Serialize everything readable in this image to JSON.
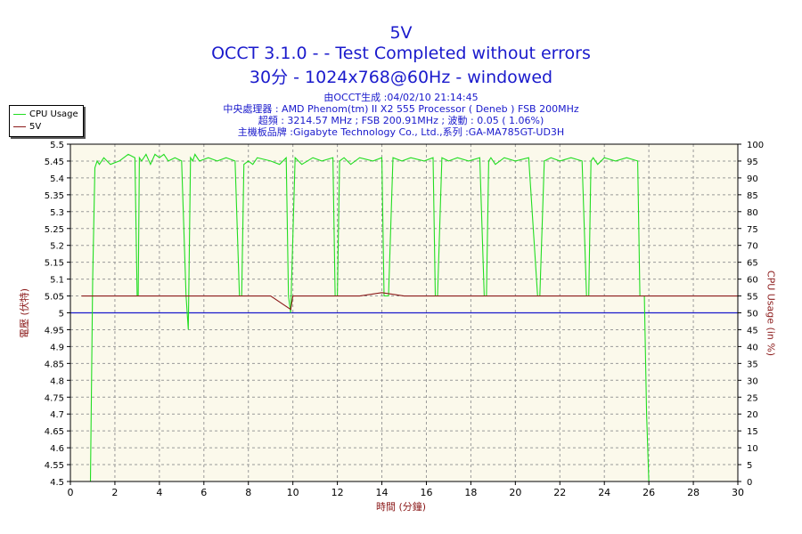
{
  "header": {
    "title": "5V",
    "subtitle": "OCCT 3.1.0 -  - Test Completed without errors",
    "subtitle2": "30分 - 1024x768@60Hz - windowed",
    "info": [
      "由OCCT生成 :04/02/10 21:14:45",
      "中央處理器 : AMD Phenom(tm) II X2 555 Processor ( Deneb ) FSB 200MHz",
      "超頻 : 3214.57 MHz ; FSB 200.91MHz ; 波動 : 0.05 ( 1.06%)",
      "主機板品牌 :Gigabyte Technology Co., Ltd.,系列 :GA-MA785GT-UD3H"
    ]
  },
  "legend": {
    "cpu_label": "CPU Usage",
    "v5_label": "5V"
  },
  "colors": {
    "cpu": "#22dd22",
    "v5": "#8b1a1a",
    "ref": "#1a1acc",
    "plot_bg": "#fbf9eb",
    "title": "#1a1acc",
    "axis_label": "#8b1a1a"
  },
  "chart_data": {
    "type": "line",
    "title": "5V",
    "xlabel": "時間 (分鐘)",
    "ylabel": "電壓 (伏特)",
    "y2label": "CPU Usage (in %)",
    "xlim": [
      0,
      30
    ],
    "ylim": [
      4.5,
      5.5
    ],
    "y2lim": [
      0,
      100
    ],
    "grid": true,
    "legend_position": "top-left",
    "x_ticks": [
      0,
      2,
      4,
      6,
      8,
      10,
      12,
      14,
      16,
      18,
      20,
      22,
      24,
      26,
      28,
      30
    ],
    "y_ticks": [
      4.5,
      4.55,
      4.6,
      4.65,
      4.7,
      4.75,
      4.8,
      4.85,
      4.9,
      4.95,
      5,
      5.05,
      5.1,
      5.15,
      5.2,
      5.25,
      5.3,
      5.35,
      5.4,
      5.45,
      5.5
    ],
    "y_tick_labels": [
      "4.5",
      "4.55",
      "4.6",
      "4.65",
      "4.7",
      "4.75",
      "4.8",
      "4.85",
      "4.9",
      "4.95",
      "5",
      "5.05",
      "5.1",
      "5.15",
      "5.2",
      "5.25",
      "5.3",
      "5.35",
      "5.4",
      "5.45",
      "5.5"
    ],
    "y2_ticks": [
      0,
      5,
      10,
      15,
      20,
      25,
      30,
      35,
      40,
      45,
      50,
      55,
      60,
      65,
      70,
      75,
      80,
      85,
      90,
      95,
      100
    ],
    "reference_line": {
      "y": 5.0
    },
    "series": [
      {
        "name": "CPU Usage",
        "axis": "right",
        "x": [
          0.9,
          1.0,
          1.1,
          1.2,
          1.3,
          1.5,
          1.8,
          2.2,
          2.6,
          2.9,
          3.0,
          3.05,
          3.1,
          3.2,
          3.4,
          3.6,
          3.8,
          4.0,
          4.2,
          4.4,
          4.7,
          5.0,
          5.2,
          5.3,
          5.4,
          5.5,
          5.6,
          5.8,
          6.2,
          6.6,
          7.0,
          7.4,
          7.6,
          7.7,
          7.8,
          8.0,
          8.2,
          8.4,
          9.0,
          9.4,
          9.7,
          9.8,
          9.9,
          10.1,
          10.4,
          10.9,
          11.3,
          11.8,
          11.9,
          12.0,
          12.1,
          12.3,
          12.6,
          13.0,
          13.6,
          14.0,
          14.1,
          14.3,
          14.5,
          14.9,
          15.3,
          15.9,
          16.3,
          16.4,
          16.5,
          16.7,
          17.0,
          17.4,
          17.9,
          18.4,
          18.6,
          18.7,
          18.8,
          18.9,
          19.1,
          19.5,
          20.0,
          20.6,
          21.0,
          21.1,
          21.3,
          21.6,
          22.0,
          22.5,
          23.0,
          23.2,
          23.3,
          23.4,
          23.5,
          23.7,
          24.0,
          24.5,
          25.0,
          25.5,
          25.6,
          25.8,
          25.9,
          26.0,
          26.1
        ],
        "values": [
          0,
          60,
          93,
          95,
          94,
          96,
          94,
          95,
          97,
          96,
          55,
          55,
          96,
          95,
          97,
          94,
          97,
          96,
          97,
          95,
          96,
          95,
          55,
          45,
          96,
          95,
          97,
          95,
          96,
          95,
          96,
          95,
          55,
          55,
          94,
          95,
          94,
          96,
          95,
          94,
          96,
          55,
          50,
          96,
          94,
          96,
          95,
          96,
          55,
          55,
          95,
          96,
          94,
          96,
          95,
          96,
          55,
          55,
          96,
          95,
          96,
          95,
          96,
          55,
          55,
          96,
          95,
          96,
          95,
          96,
          55,
          55,
          95,
          96,
          94,
          96,
          95,
          96,
          55,
          55,
          95,
          96,
          95,
          96,
          95,
          55,
          55,
          95,
          96,
          94,
          96,
          95,
          96,
          95,
          55,
          55,
          20,
          0,
          0
        ]
      },
      {
        "name": "5V",
        "axis": "left",
        "x": [
          0.5,
          1.0,
          2.0,
          3.0,
          4.0,
          5.0,
          6.0,
          7.0,
          8.0,
          9.0,
          9.9,
          10.0,
          11.0,
          12.0,
          13.0,
          14.0,
          15.0,
          16.0,
          17.0,
          18.0,
          19.0,
          20.0,
          21.0,
          22.0,
          23.0,
          24.0,
          25.0,
          26.0,
          27.0,
          28.0,
          29.0,
          30.0
        ],
        "values": [
          5.05,
          5.05,
          5.05,
          5.05,
          5.05,
          5.05,
          5.05,
          5.05,
          5.05,
          5.05,
          5.01,
          5.05,
          5.05,
          5.05,
          5.05,
          5.06,
          5.05,
          5.05,
          5.05,
          5.05,
          5.05,
          5.05,
          5.05,
          5.05,
          5.05,
          5.05,
          5.05,
          5.05,
          5.05,
          5.05,
          5.05,
          5.05
        ]
      }
    ]
  }
}
